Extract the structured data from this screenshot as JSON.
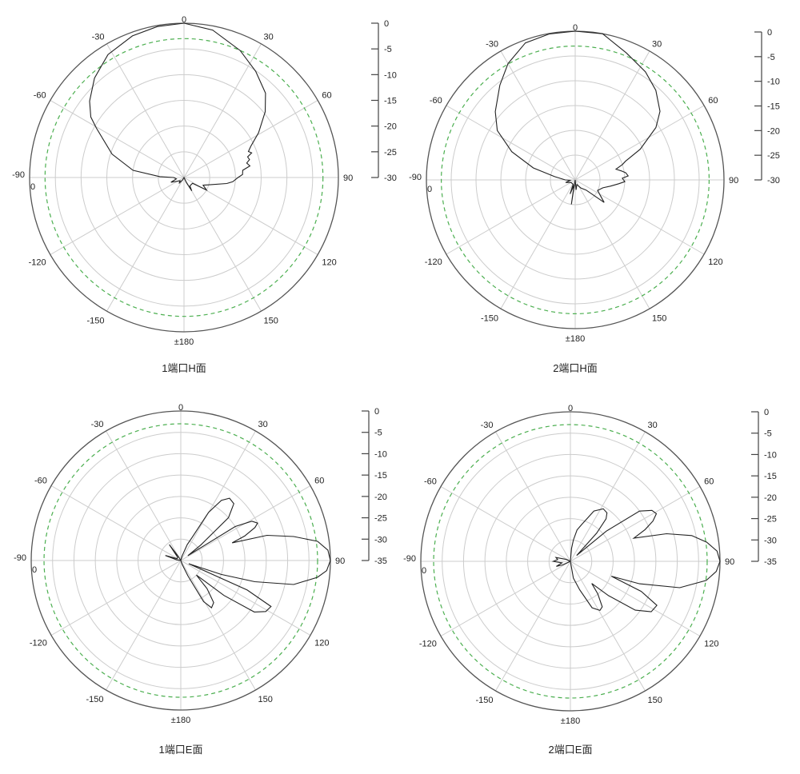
{
  "colors": {
    "grid": "#cccccc",
    "outer": "#555555",
    "trace": "#222222",
    "reference": "#4caf50"
  },
  "chart_data": [
    {
      "type": "polar",
      "title": "1端口H面",
      "angle_labels": [
        "0",
        "30",
        "60",
        "90",
        "120",
        "150",
        "±180",
        "-150",
        "-120",
        "-90",
        "-60",
        "-30"
      ],
      "offset_label": "0",
      "rlim": [
        -30,
        0
      ],
      "radial_ticks": [
        "0",
        "-5",
        "-10",
        "-15",
        "-20",
        "-25",
        "-30"
      ],
      "radial_tick_values": [
        0,
        -5,
        -10,
        -15,
        -20,
        -25,
        -30
      ],
      "reference_db": -3,
      "grid": true,
      "points": [
        [
          -180,
          -30
        ],
        [
          -150,
          -29.5
        ],
        [
          -140,
          -28.5
        ],
        [
          -130,
          -29
        ],
        [
          -110,
          -27.3
        ],
        [
          -100,
          -28.5
        ],
        [
          -90,
          -28
        ],
        [
          -88,
          -25.3
        ],
        [
          -82,
          -20
        ],
        [
          -72,
          -15.3
        ],
        [
          -60.5,
          -10.4
        ],
        [
          -57,
          -8.4
        ],
        [
          -51,
          -6.4
        ],
        [
          -42,
          -4
        ],
        [
          -31.7,
          -1.9
        ],
        [
          -20,
          -0.7
        ],
        [
          -10,
          -0.2
        ],
        [
          0,
          0
        ],
        [
          11,
          -0.8
        ],
        [
          23.8,
          -3
        ],
        [
          34,
          -5.1
        ],
        [
          44,
          -7.2
        ],
        [
          51,
          -9.7
        ],
        [
          59,
          -13.1
        ],
        [
          65,
          -15.7
        ],
        [
          68,
          -16.5
        ],
        [
          70,
          -16
        ],
        [
          72,
          -17
        ],
        [
          74.7,
          -16.8
        ],
        [
          77,
          -17.5
        ],
        [
          80,
          -17
        ],
        [
          83,
          -18.5
        ],
        [
          87,
          -18.6
        ],
        [
          90,
          -19.5
        ],
        [
          95,
          -20.5
        ],
        [
          98,
          -21.6
        ],
        [
          107,
          -25.1
        ],
        [
          112,
          -26
        ],
        [
          119,
          -25
        ],
        [
          124,
          -28
        ],
        [
          145,
          -28
        ],
        [
          150,
          -27
        ],
        [
          155,
          -29
        ],
        [
          180,
          -30
        ]
      ]
    },
    {
      "type": "polar",
      "title": "2端口H面",
      "angle_labels": [
        "0",
        "30",
        "60",
        "90",
        "120",
        "150",
        "±180",
        "-150",
        "-120",
        "-90",
        "-60",
        "-30"
      ],
      "offset_label": "0",
      "rlim": [
        -30,
        0
      ],
      "radial_ticks": [
        "0",
        "-5",
        "-10",
        "-15",
        "-20",
        "-25",
        "-30"
      ],
      "radial_tick_values": [
        0,
        -5,
        -10,
        -15,
        -20,
        -25,
        -30
      ],
      "reference_db": -3,
      "grid": true,
      "points": [
        [
          -180,
          -30
        ],
        [
          -171,
          -25
        ],
        [
          -168,
          -29
        ],
        [
          -160,
          -27
        ],
        [
          -155,
          -29
        ],
        [
          -120,
          -29
        ],
        [
          -105,
          -28
        ],
        [
          -95,
          -29
        ],
        [
          -90,
          -28
        ],
        [
          -81,
          -25.8
        ],
        [
          -74,
          -21.2
        ],
        [
          -66,
          -16
        ],
        [
          -57.6,
          -11.4
        ],
        [
          -49.5,
          -8.8
        ],
        [
          -38.5,
          -5.6
        ],
        [
          -30,
          -2.9
        ],
        [
          -20,
          -0.6
        ],
        [
          -10,
          -0.1
        ],
        [
          0,
          0
        ],
        [
          10.6,
          0
        ],
        [
          22,
          -2.4
        ],
        [
          33,
          -4
        ],
        [
          42,
          -5.7
        ],
        [
          51,
          -8
        ],
        [
          57,
          -10.6
        ],
        [
          64.7,
          -15.5
        ],
        [
          69.6,
          -19.2
        ],
        [
          72,
          -20
        ],
        [
          75.3,
          -21.5
        ],
        [
          79,
          -20.5
        ],
        [
          82,
          -19.7
        ],
        [
          85.7,
          -19.3
        ],
        [
          88,
          -20.5
        ],
        [
          92,
          -20
        ],
        [
          95,
          -21.2
        ],
        [
          100,
          -22.8
        ],
        [
          106,
          -24.2
        ],
        [
          115,
          -25
        ],
        [
          122,
          -24
        ],
        [
          128,
          -22.6
        ],
        [
          133,
          -27
        ],
        [
          145,
          -28
        ],
        [
          160,
          -29
        ],
        [
          175,
          -28
        ],
        [
          180,
          -30
        ]
      ]
    },
    {
      "type": "polar",
      "title": "1端口E面",
      "angle_labels": [
        "0",
        "30",
        "60",
        "90",
        "120",
        "150",
        "±180",
        "-150",
        "-120",
        "-90",
        "-60",
        "-30"
      ],
      "offset_label": "0",
      "rlim": [
        -35,
        0
      ],
      "radial_ticks": [
        "0",
        "-5",
        "-10",
        "-15",
        "-20",
        "-25",
        "-30",
        "-35"
      ],
      "radial_tick_values": [
        0,
        -5,
        -10,
        -15,
        -20,
        -25,
        -30,
        -35
      ],
      "reference_db": -3,
      "grid": true,
      "points": [
        [
          -180,
          -35
        ],
        [
          -150,
          -35
        ],
        [
          -120,
          -35
        ],
        [
          -80,
          -34
        ],
        [
          -72,
          -31.2
        ],
        [
          -65,
          -34
        ],
        [
          -45,
          -34
        ],
        [
          -36,
          -30.4
        ],
        [
          -30,
          -34
        ],
        [
          -10,
          -35
        ],
        [
          0,
          -35
        ],
        [
          15,
          -34
        ],
        [
          22,
          -31
        ],
        [
          26,
          -29
        ],
        [
          30,
          -22
        ],
        [
          34,
          -18
        ],
        [
          38,
          -16.5
        ],
        [
          43,
          -16.8
        ],
        [
          48,
          -20
        ],
        [
          52,
          -29
        ],
        [
          55,
          -33
        ],
        [
          58,
          -20
        ],
        [
          61,
          -16
        ],
        [
          64,
          -15
        ],
        [
          66,
          -16
        ],
        [
          69,
          -19
        ],
        [
          71,
          -22.3
        ],
        [
          73.7,
          -14
        ],
        [
          78,
          -8
        ],
        [
          82,
          -2.7
        ],
        [
          86,
          -0.5
        ],
        [
          90,
          0
        ],
        [
          94,
          -0.8
        ],
        [
          97,
          -2.8
        ],
        [
          102,
          -8
        ],
        [
          106,
          -17
        ],
        [
          109,
          -25
        ],
        [
          112,
          -33
        ],
        [
          114,
          -18
        ],
        [
          117,
          -11.3
        ],
        [
          121,
          -11.8
        ],
        [
          125,
          -14
        ],
        [
          129,
          -22
        ],
        [
          133,
          -30
        ],
        [
          137,
          -26
        ],
        [
          142,
          -22.5
        ],
        [
          147,
          -21.8
        ],
        [
          151,
          -24
        ],
        [
          155,
          -31
        ],
        [
          160,
          -34
        ],
        [
          180,
          -35
        ]
      ]
    },
    {
      "type": "polar",
      "title": "2端口E面",
      "angle_labels": [
        "0",
        "30",
        "60",
        "90",
        "120",
        "150",
        "±180",
        "-150",
        "-120",
        "-90",
        "-60",
        "-30"
      ],
      "offset_label": "0",
      "rlim": [
        -35,
        0
      ],
      "radial_ticks": [
        "0",
        "-5",
        "-10",
        "-15",
        "-20",
        "-25",
        "-30",
        "-35"
      ],
      "radial_tick_values": [
        0,
        -5,
        -10,
        -15,
        -20,
        -25,
        -30,
        -35
      ],
      "reference_db": -3,
      "grid": true,
      "points": [
        [
          -180,
          -35
        ],
        [
          -130,
          -35
        ],
        [
          -115,
          -33
        ],
        [
          -110,
          -31.5
        ],
        [
          -100,
          -33
        ],
        [
          -90,
          -31
        ],
        [
          -82,
          -32
        ],
        [
          -75,
          -31.5
        ],
        [
          -65,
          -34
        ],
        [
          -40,
          -35
        ],
        [
          0,
          -35
        ],
        [
          5,
          -32
        ],
        [
          8,
          -30
        ],
        [
          12,
          -27.5
        ],
        [
          17,
          -26
        ],
        [
          25,
          -22
        ],
        [
          32,
          -20.5
        ],
        [
          37,
          -20.8
        ],
        [
          40,
          -22
        ],
        [
          43,
          -26
        ],
        [
          47,
          -33
        ],
        [
          50,
          -24
        ],
        [
          54,
          -15
        ],
        [
          58,
          -12.5
        ],
        [
          61,
          -12
        ],
        [
          64,
          -13.5
        ],
        [
          67,
          -16
        ],
        [
          70,
          -19.2
        ],
        [
          74,
          -11.6
        ],
        [
          78,
          -6
        ],
        [
          82,
          -2.8
        ],
        [
          86,
          -0.6
        ],
        [
          90,
          0
        ],
        [
          94,
          -0.8
        ],
        [
          98,
          -2.9
        ],
        [
          103.6,
          -8.7
        ],
        [
          108,
          -18
        ],
        [
          110,
          -24.8
        ],
        [
          113,
          -17
        ],
        [
          117,
          -12.3
        ],
        [
          122,
          -12.7
        ],
        [
          127,
          -16
        ],
        [
          132,
          -23
        ],
        [
          136,
          -27.8
        ],
        [
          140,
          -25
        ],
        [
          145,
          -22
        ],
        [
          149,
          -21.6
        ],
        [
          155,
          -23
        ],
        [
          162,
          -28
        ],
        [
          170,
          -31
        ],
        [
          180,
          -35
        ]
      ]
    }
  ]
}
